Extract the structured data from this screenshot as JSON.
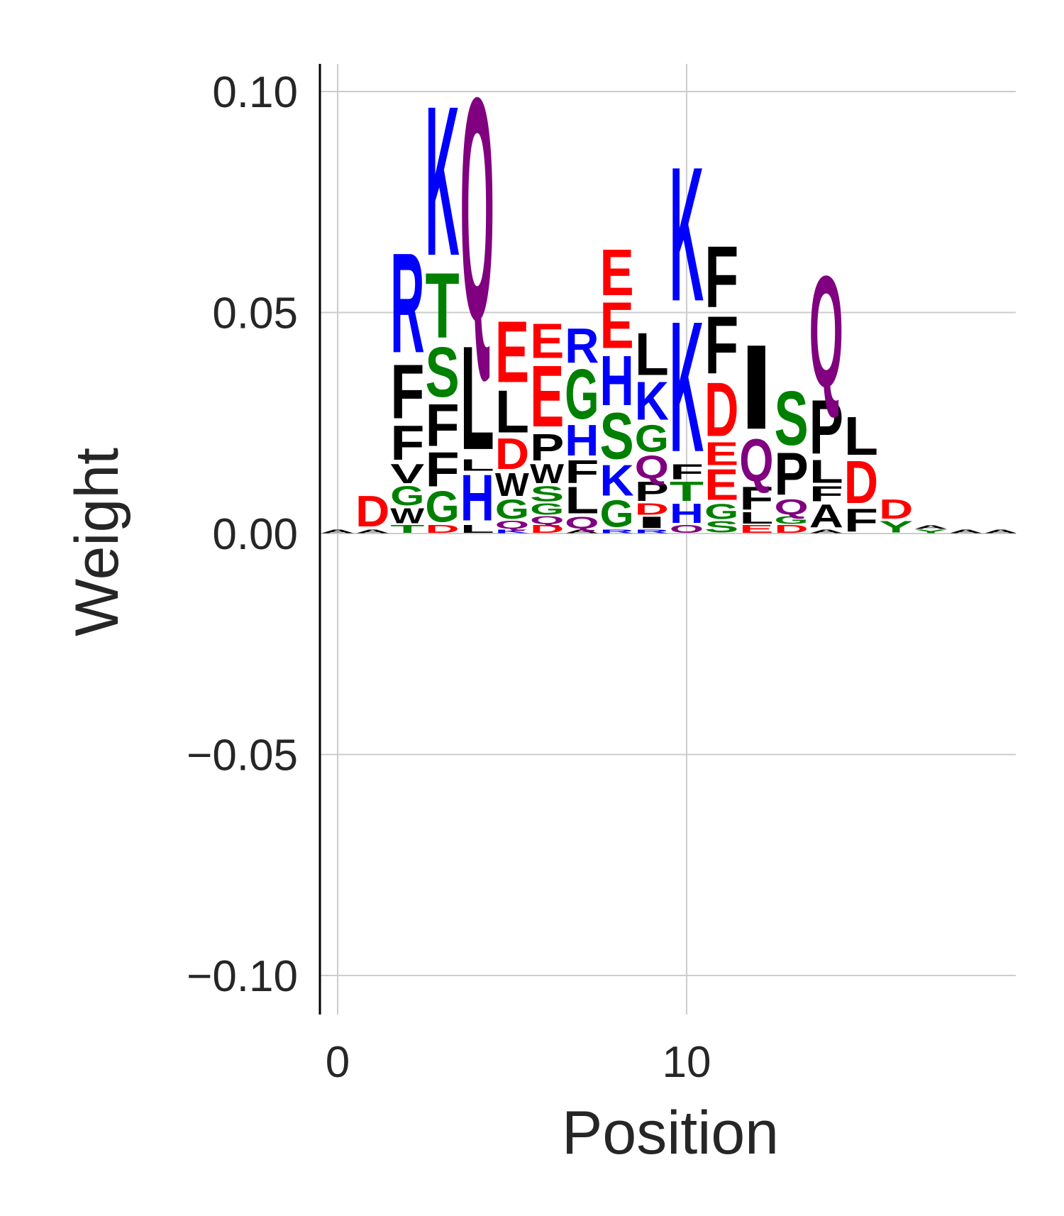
{
  "chart_data": {
    "type": "sequence-logo",
    "title": "",
    "xlabel": "Position",
    "ylabel": "Weight",
    "xlim": [
      -0.5,
      19
    ],
    "ylim": [
      -0.1085,
      0.1075
    ],
    "xticks": [
      0,
      10
    ],
    "xtick_labels": [
      "0",
      "10"
    ],
    "yticks": [
      0.1,
      0.05,
      0.0,
      -0.05,
      -0.1
    ],
    "ytick_labels": [
      "0.10",
      "0.05",
      "0.00",
      "−0.05",
      "−0.10"
    ],
    "grid": true,
    "colors": {
      "K": "#0000ff",
      "R": "#0000ff",
      "H": "#0000ff",
      "D": "#ff0000",
      "E": "#ff0000",
      "S": "#008000",
      "T": "#008000",
      "G": "#008000",
      "Y": "#008000",
      "C": "#008000",
      "Q": "#800080",
      "N": "#800080",
      "A": "#000000",
      "V": "#000000",
      "L": "#000000",
      "I": "#000000",
      "P": "#000000",
      "W": "#000000",
      "F": "#000000",
      "M": "#000000"
    },
    "positions": [
      {
        "x": 0,
        "stack": [
          [
            "A",
            0.001
          ]
        ]
      },
      {
        "x": 1,
        "stack": [
          [
            "A",
            0.001
          ],
          [
            "D",
            0.008
          ]
        ]
      },
      {
        "x": 2,
        "stack": [
          [
            "T",
            0.002
          ],
          [
            "W",
            0.004
          ],
          [
            "G",
            0.005
          ],
          [
            "V",
            0.005
          ],
          [
            "F",
            0.009
          ],
          [
            "F",
            0.014
          ],
          [
            "R",
            0.026
          ]
        ]
      },
      {
        "x": 3,
        "stack": [
          [
            "D",
            0.002
          ],
          [
            "G",
            0.008
          ],
          [
            "F",
            0.009
          ],
          [
            "F",
            0.011
          ],
          [
            "S",
            0.013
          ],
          [
            "T",
            0.017
          ],
          [
            "K",
            0.039
          ]
        ]
      },
      {
        "x": 4,
        "stack": [
          [
            "L",
            0.002
          ],
          [
            "H",
            0.012
          ],
          [
            "L",
            0.003
          ],
          [
            "L",
            0.027
          ],
          [
            "Q",
            0.058
          ]
        ]
      },
      {
        "x": 5,
        "stack": [
          [
            "K",
            0.001
          ],
          [
            "Q",
            0.002
          ],
          [
            "G",
            0.005
          ],
          [
            "W",
            0.006
          ],
          [
            "D",
            0.008
          ],
          [
            "L",
            0.011
          ],
          [
            "E",
            0.016
          ]
        ]
      },
      {
        "x": 6,
        "stack": [
          [
            "D",
            0.002
          ],
          [
            "Q",
            0.002
          ],
          [
            "G",
            0.003
          ],
          [
            "S",
            0.004
          ],
          [
            "W",
            0.005
          ],
          [
            "P",
            0.007
          ],
          [
            "E",
            0.016
          ],
          [
            "E",
            0.009
          ]
        ]
      },
      {
        "x": 7,
        "stack": [
          [
            "A",
            0.001
          ],
          [
            "Q",
            0.003
          ],
          [
            "L",
            0.007
          ],
          [
            "F",
            0.006
          ],
          [
            "H",
            0.008
          ],
          [
            "G",
            0.013
          ],
          [
            "R",
            0.009
          ]
        ]
      },
      {
        "x": 8,
        "stack": [
          [
            "R",
            0.001
          ],
          [
            "G",
            0.007
          ],
          [
            "K",
            0.008
          ],
          [
            "S",
            0.012
          ],
          [
            "H",
            0.013
          ],
          [
            "E",
            0.012
          ],
          [
            "E",
            0.012
          ]
        ]
      },
      {
        "x": 9,
        "stack": [
          [
            "R",
            0.001
          ],
          [
            "I",
            0.003
          ],
          [
            "D",
            0.003
          ],
          [
            "P",
            0.005
          ],
          [
            "Q",
            0.006
          ],
          [
            "G",
            0.007
          ],
          [
            "K",
            0.01
          ],
          [
            "L",
            0.011
          ]
        ]
      },
      {
        "x": 10,
        "stack": [
          [
            "O",
            0.002
          ],
          [
            "H",
            0.005
          ],
          [
            "T",
            0.005
          ],
          [
            "F",
            0.004
          ],
          [
            "K",
            0.034
          ],
          [
            "K",
            0.035
          ]
        ]
      },
      {
        "x": 11,
        "stack": [
          [
            "S",
            0.003
          ],
          [
            "G",
            0.004
          ],
          [
            "E",
            0.008
          ],
          [
            "E",
            0.006
          ],
          [
            "D",
            0.014
          ],
          [
            "F",
            0.015
          ],
          [
            "F",
            0.016
          ]
        ]
      },
      {
        "x": 12,
        "stack": [
          [
            "E",
            0.002
          ],
          [
            "L",
            0.003
          ],
          [
            "F",
            0.006
          ],
          [
            "Q",
            0.011
          ],
          [
            "I",
            0.022
          ]
        ]
      },
      {
        "x": 13,
        "stack": [
          [
            "D",
            0.002
          ],
          [
            "G",
            0.002
          ],
          [
            "Q",
            0.004
          ],
          [
            "P",
            0.011
          ],
          [
            "S",
            0.014
          ]
        ]
      },
      {
        "x": 14,
        "stack": [
          [
            "A",
            0.001
          ],
          [
            "A",
            0.006
          ],
          [
            "F",
            0.004
          ],
          [
            "L",
            0.006
          ],
          [
            "P",
            0.014
          ],
          [
            "Q",
            0.029
          ]
        ]
      },
      {
        "x": 15,
        "stack": [
          [
            "F",
            0.006
          ],
          [
            "D",
            0.011
          ],
          [
            "L",
            0.01
          ]
        ]
      },
      {
        "x": 16,
        "stack": [
          [
            "Y",
            0.003
          ],
          [
            "D",
            0.005
          ]
        ]
      },
      {
        "x": 17,
        "stack": [
          [
            "Y",
            0.001
          ],
          [
            "A",
            0.001
          ]
        ]
      },
      {
        "x": 18,
        "stack": [
          [
            "A",
            0.001
          ]
        ]
      },
      {
        "x": 19,
        "stack": [
          [
            "A",
            0.001
          ]
        ]
      }
    ]
  }
}
